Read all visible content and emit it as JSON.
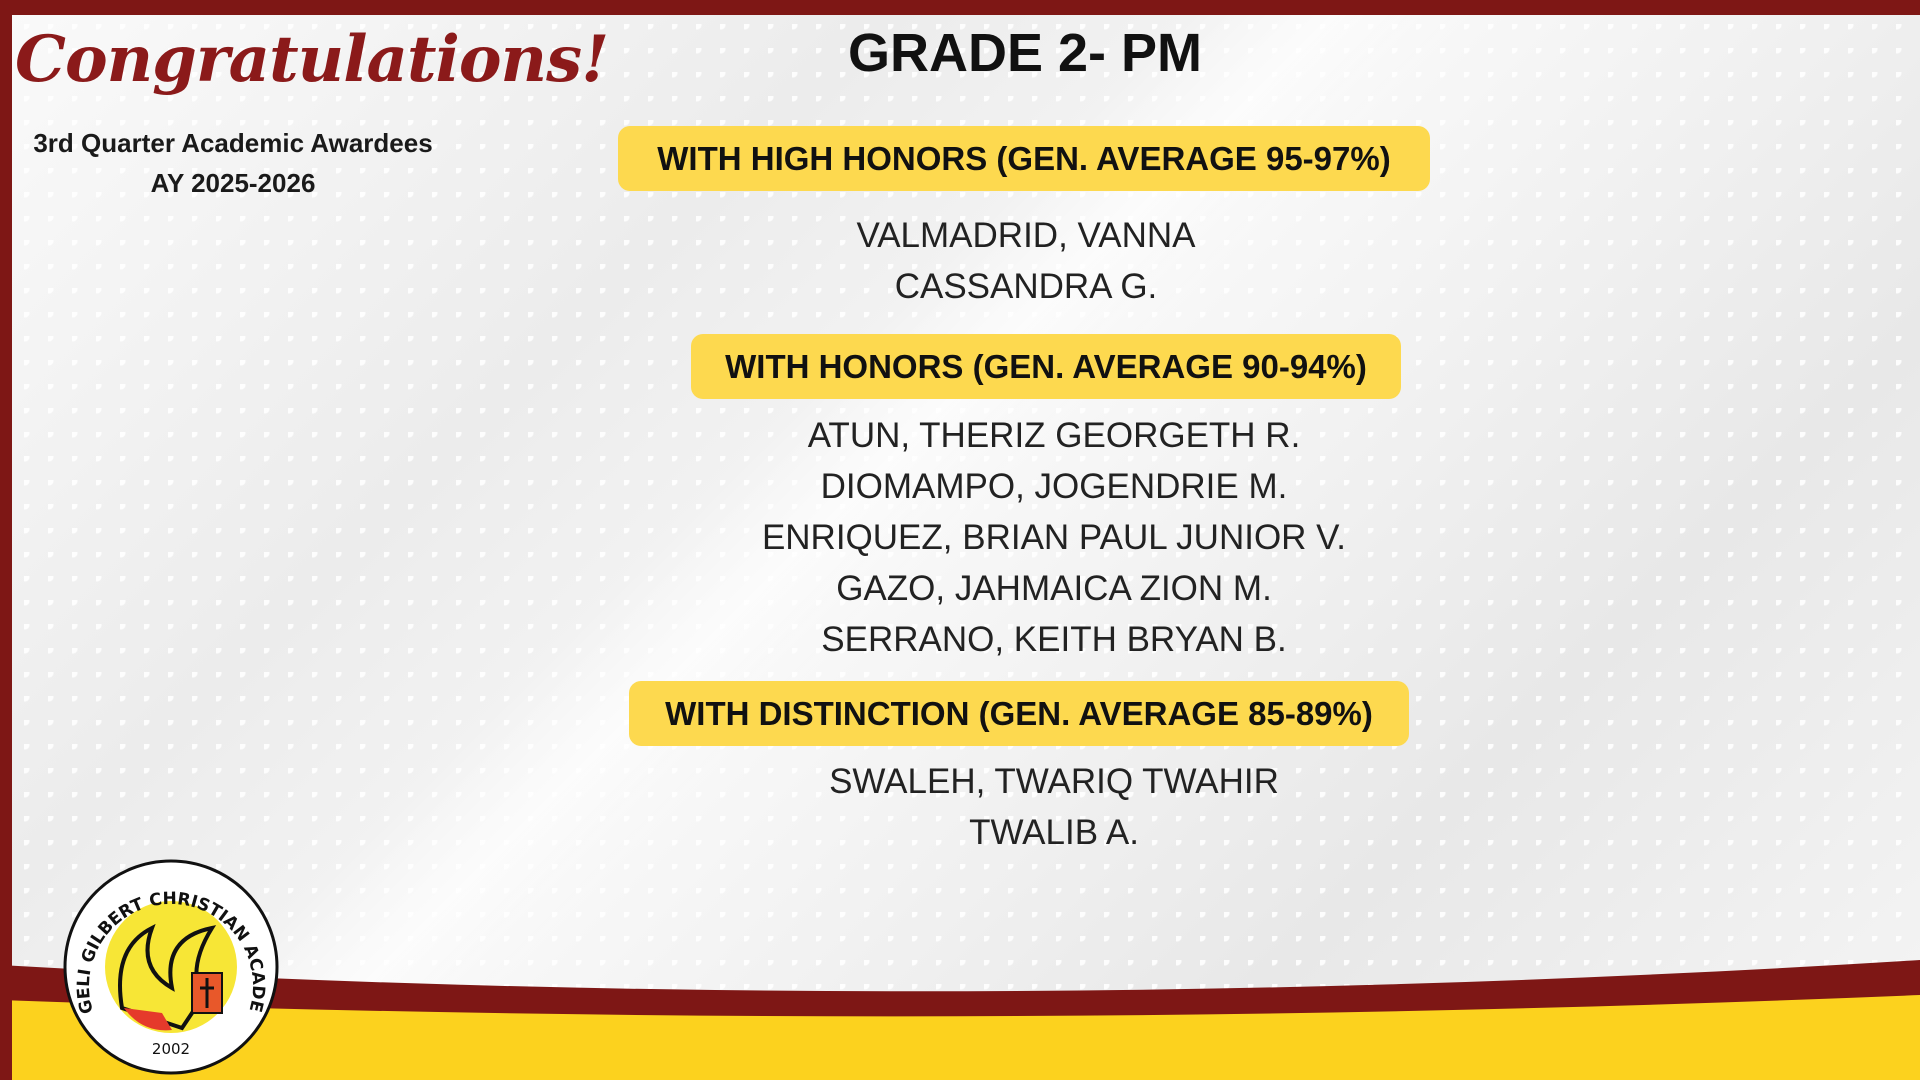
{
  "header": {
    "congratulations": "Congratulations!",
    "subtitle_line1": "3rd Quarter Academic Awardees",
    "subtitle_line2": "AY 2025-2026",
    "title": "GRADE 2- PM"
  },
  "sections": [
    {
      "label": "WITH HIGH HONORS (GEN. AVERAGE 95-97%)",
      "names": [
        "VALMADRID, VANNA",
        "CASSANDRA G."
      ]
    },
    {
      "label": "WITH HONORS (GEN. AVERAGE 90-94%)",
      "names": [
        "ATUN, THERIZ GEORGETH R.",
        "DIOMAMPO, JOGENDRIE M.",
        "ENRIQUEZ, BRIAN PAUL JUNIOR V.",
        "GAZO, JAHMAICA ZION M.",
        "SERRANO, KEITH BRYAN B."
      ]
    },
    {
      "label": "WITH DISTINCTION (GEN. AVERAGE 85-89%)",
      "names": [
        "SWALEH, TWARIQ TWAHIR",
        "TWALIB A."
      ]
    }
  ],
  "logo": {
    "text": "ANGELI GILBERT CHRISTIAN ACADEMY",
    "year": "2002"
  },
  "colors": {
    "maroon": "#7e1715",
    "yellow": "#fdd94f",
    "gold": "#fcd21e"
  }
}
